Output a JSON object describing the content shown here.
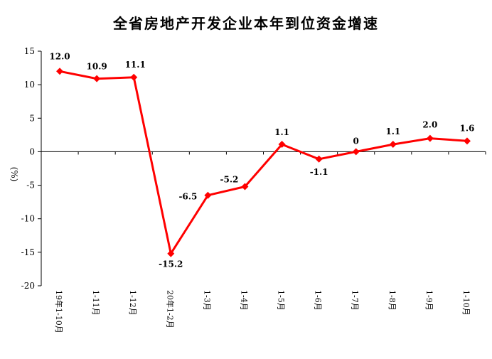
{
  "chart_data": {
    "type": "line",
    "title": "全省房地产开发企业本年到位资金增速",
    "ylabel": "(%)",
    "xlabel": "",
    "ylim": [
      -20,
      15
    ],
    "yticks": [
      15,
      10,
      5,
      0,
      -5,
      -10,
      -15,
      -20
    ],
    "categories": [
      "19年1-10月",
      "1-11月",
      "1-12月",
      "20年1-2月",
      "1-3月",
      "1-4月",
      "1-5月",
      "1-6月",
      "1-7月",
      "1-8月",
      "1-9月",
      "1-10月"
    ],
    "values": [
      12.0,
      10.9,
      11.1,
      -15.2,
      -6.5,
      -5.2,
      1.1,
      -1.1,
      0,
      1.1,
      2.0,
      1.6
    ],
    "data_labels": [
      "12.0",
      "10.9",
      "11.1",
      "-15.2",
      "-6.5",
      "-5.2",
      "1.1",
      "-1.1",
      "0",
      "1.1",
      "2.0",
      "1.6"
    ],
    "line_color": "#ff0000",
    "grid": false,
    "legend": "none"
  }
}
